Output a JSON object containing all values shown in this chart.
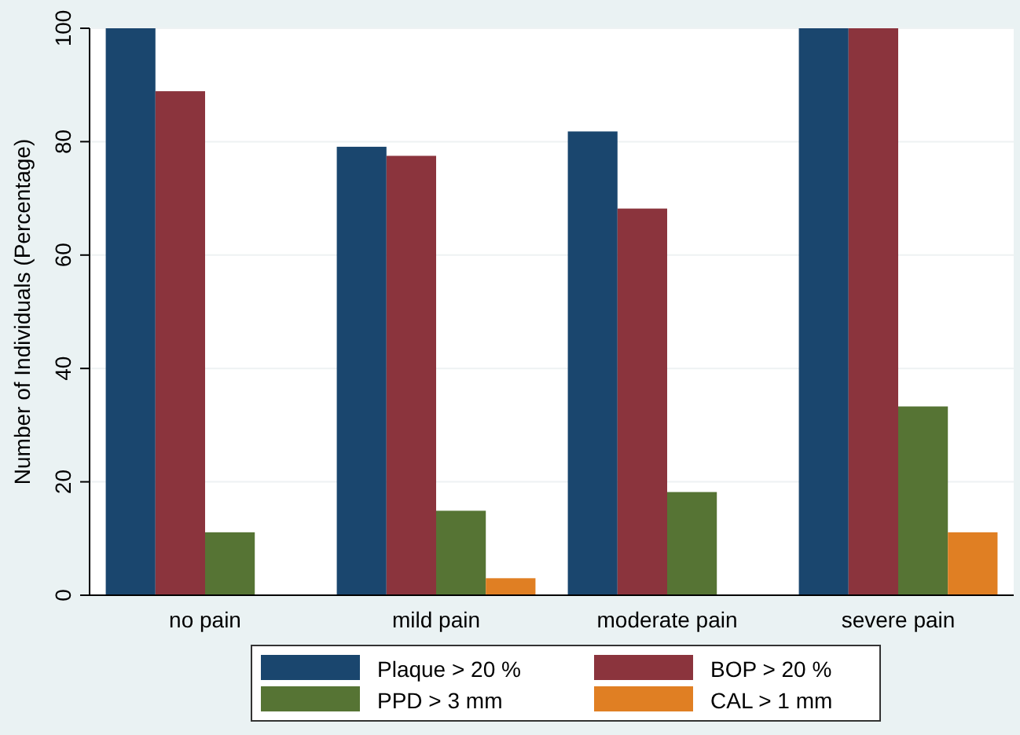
{
  "chart_data": {
    "type": "bar",
    "ylabel": "Number of Individuals (Percentage)",
    "categories": [
      "no pain",
      "mild pain",
      "moderate pain",
      "severe pain"
    ],
    "series": [
      {
        "name": "Plaque > 20 %",
        "color": "#1a466e",
        "values": [
          100,
          79.1,
          81.8,
          100
        ]
      },
      {
        "name": "BOP > 20 %",
        "color": "#8b343d",
        "values": [
          88.9,
          77.5,
          68.2,
          100
        ]
      },
      {
        "name": "PPD > 3 mm",
        "color": "#567434",
        "values": [
          11.1,
          14.9,
          18.2,
          33.3
        ]
      },
      {
        "name": "CAL > 1 mm",
        "color": "#e07f23",
        "values": [
          0,
          3.0,
          0,
          11.1
        ]
      }
    ],
    "ylim": [
      0,
      100
    ],
    "yticks": [
      0,
      20,
      40,
      60,
      80,
      100
    ],
    "grid": "y",
    "legend": "bottom"
  }
}
